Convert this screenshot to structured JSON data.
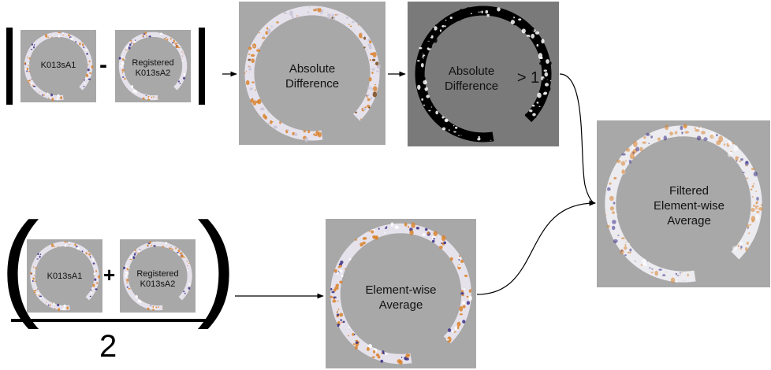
{
  "colors": {
    "panel_bg": "#a8a8a8",
    "threshold_bg": "#7a7a7a",
    "ring_base": "#e6e2ec",
    "ring_warm": "#d9822b",
    "ring_cool": "#3b2f86",
    "mask_white": "#ffffff",
    "mask_black": "#000000"
  },
  "inputs_top": {
    "image_a_label": "K013sA1",
    "minus_sign": "-",
    "image_b_label_line1": "Registered",
    "image_b_label_line2": "K013sA2"
  },
  "inputs_bottom": {
    "image_a_label": "K013sA1",
    "plus_sign": "+",
    "image_b_label_line1": "Registered",
    "image_b_label_line2": "K013sA2",
    "open_paren": "(",
    "close_paren": ")",
    "denominator": "2"
  },
  "nodes": {
    "absolute_difference_line1": "Absolute",
    "absolute_difference_line2": "Difference",
    "threshold_line1": "Absolute",
    "threshold_line2": "Difference",
    "threshold_suffix": "> 1",
    "average_line1": "Element-wise",
    "average_line2": "Average",
    "filtered_line1": "Filtered",
    "filtered_line2": "Element-wise",
    "filtered_line3": "Average"
  }
}
